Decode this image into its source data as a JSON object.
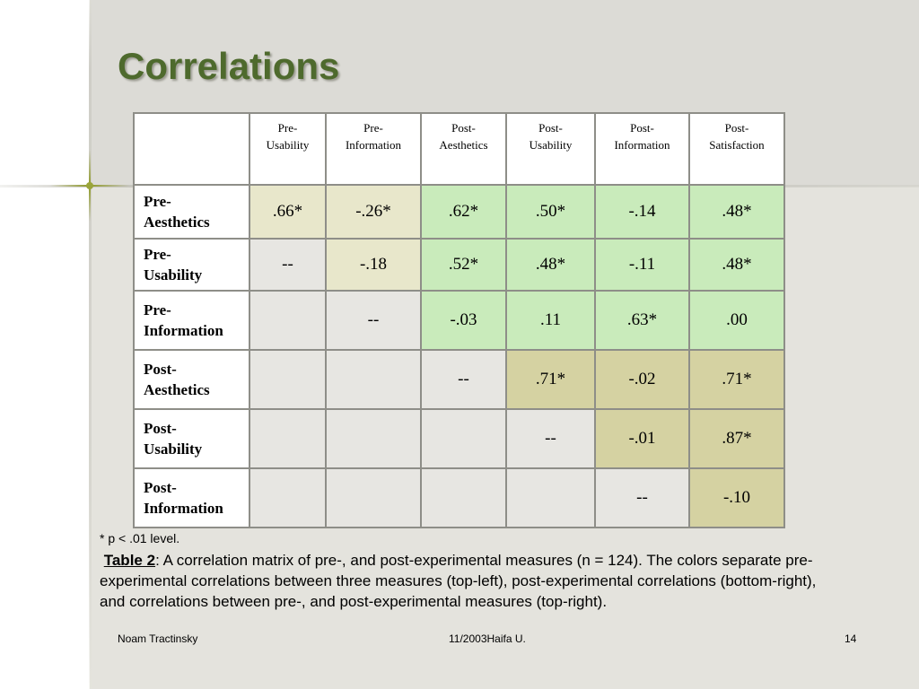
{
  "title": "Correlations",
  "table": {
    "columns": [
      "Pre-\nUsability",
      "Pre-\nInformation",
      "Post-\nAesthetics",
      "Post-\nUsability",
      "Post-\nInformation",
      "Post-\nSatisfaction"
    ],
    "rows": [
      {
        "label": "Pre-\nAesthetics",
        "cells": [
          ".66*",
          "-.26*",
          ".62*",
          ".50*",
          "-.14",
          ".48*"
        ]
      },
      {
        "label": "Pre-\nUsability",
        "cells": [
          "--",
          "-.18",
          ".52*",
          ".48*",
          "-.11",
          ".48*"
        ]
      },
      {
        "label": "Pre-\nInformation",
        "cells": [
          "",
          "--",
          "-.03",
          ".11",
          ".63*",
          ".00"
        ]
      },
      {
        "label": "Post-\nAesthetics",
        "cells": [
          "",
          "",
          "--",
          ".71*",
          "-.02",
          ".71*"
        ]
      },
      {
        "label": "Post-\nUsability",
        "cells": [
          "",
          "",
          "",
          "--",
          "-.01",
          ".87*"
        ]
      },
      {
        "label": "Post-\nInformation",
        "cells": [
          "",
          "",
          "",
          "",
          "--",
          "-.10"
        ]
      }
    ],
    "cell_colors": [
      [
        "cream",
        "cream",
        "green",
        "green",
        "green",
        "green"
      ],
      [
        "gray",
        "cream",
        "green",
        "green",
        "green",
        "green"
      ],
      [
        "gray",
        "gray",
        "green",
        "green",
        "green",
        "green"
      ],
      [
        "gray",
        "gray",
        "gray",
        "olive",
        "olive",
        "olive"
      ],
      [
        "gray",
        "gray",
        "gray",
        "gray",
        "olive",
        "olive"
      ],
      [
        "gray",
        "gray",
        "gray",
        "gray",
        "gray",
        "olive"
      ]
    ],
    "colors": {
      "cream": "#e8e7cb",
      "green": "#c9ebbb",
      "olive": "#d5d2a2",
      "gray": "#e7e6e2"
    }
  },
  "footnote": "* p < .01 level.",
  "caption": {
    "lead": "Table 2",
    "text": ": A correlation matrix of pre-, and post-experimental measures (n = 124). The colors separate pre-experimental correlations between three measures (top-left), post-experimental correlations (bottom-right), and correlations between pre-, and post-experimental measures (top-right)."
  },
  "footer": {
    "author": "Noam Tractinsky",
    "date": "11/2003Haifa U.",
    "page": "14"
  }
}
